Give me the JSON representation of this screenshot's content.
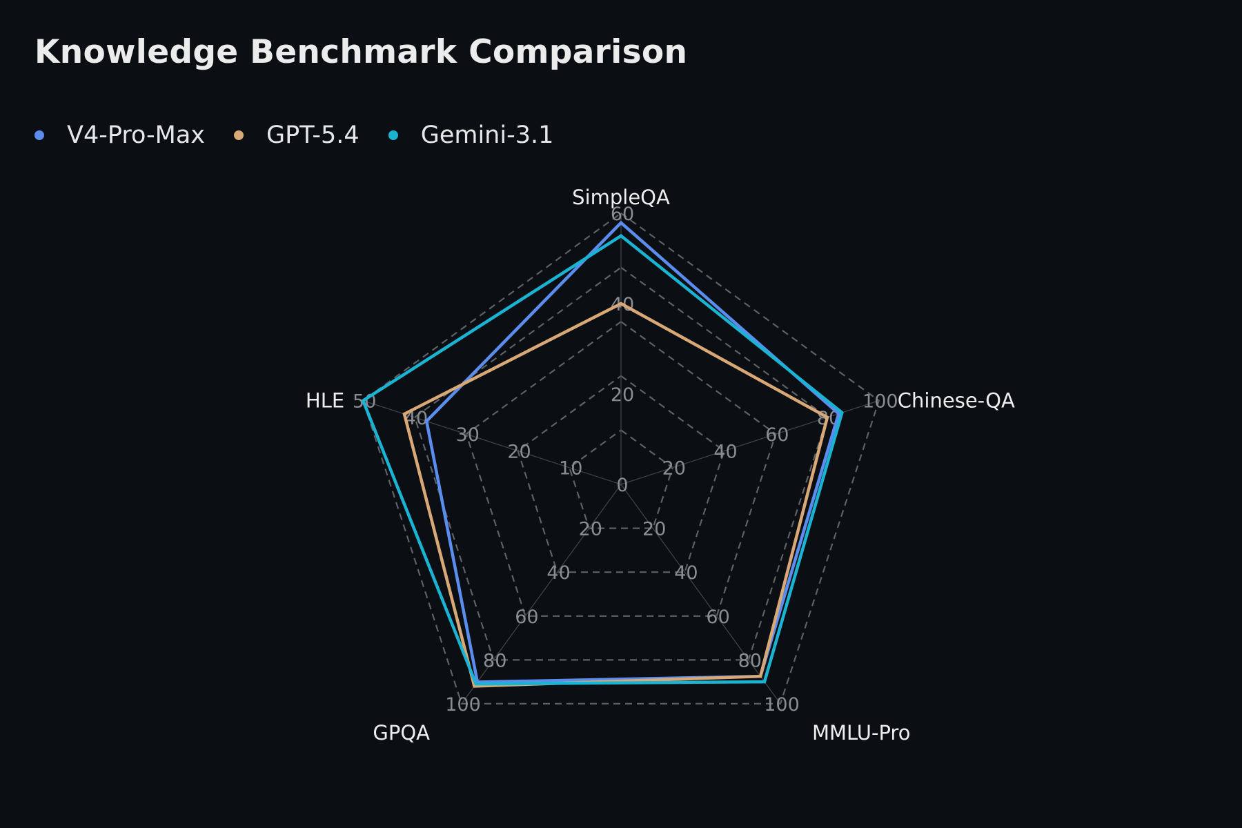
{
  "chart_data": {
    "type": "radar",
    "title": "Knowledge Benchmark Comparison",
    "axes": [
      {
        "name": "SimpleQA",
        "max": 60,
        "ticks": [
          "0",
          "20",
          "40",
          "60"
        ],
        "tick_values": [
          0,
          20,
          40,
          60
        ]
      },
      {
        "name": "Chinese-QA",
        "max": 100,
        "ticks": [
          "20",
          "40",
          "60",
          "80",
          "100"
        ],
        "tick_values": [
          20,
          40,
          60,
          80,
          100
        ]
      },
      {
        "name": "MMLU-Pro",
        "max": 100,
        "ticks": [
          "20",
          "40",
          "60",
          "80",
          "100"
        ],
        "tick_values": [
          20,
          40,
          60,
          80,
          100
        ]
      },
      {
        "name": "GPQA",
        "max": 100,
        "ticks": [
          "20",
          "40",
          "60",
          "80",
          "100"
        ],
        "tick_values": [
          20,
          40,
          60,
          80,
          100
        ]
      },
      {
        "name": "HLE",
        "max": 50,
        "ticks": [
          "10",
          "20",
          "30",
          "40",
          "50"
        ],
        "tick_values": [
          10,
          20,
          30,
          40,
          50
        ]
      }
    ],
    "grid_levels": [
      0.2,
      0.4,
      0.6,
      0.8,
      1.0
    ],
    "grid": "dashed",
    "legend_position": "top-left",
    "series": [
      {
        "name": "V4-Pro-Max",
        "color": "#5b8def",
        "values": [
          57.9,
          84.4,
          87.5,
          90.1,
          37.7
        ]
      },
      {
        "name": "GPT-5.4",
        "color": "#d9a877",
        "values": [
          40.0,
          80.0,
          87.5,
          92.0,
          42.0
        ]
      },
      {
        "name": "Gemini-3.1",
        "color": "#1ab4d2",
        "values": [
          55.0,
          85.7,
          90.0,
          91.0,
          50.0
        ]
      }
    ]
  }
}
